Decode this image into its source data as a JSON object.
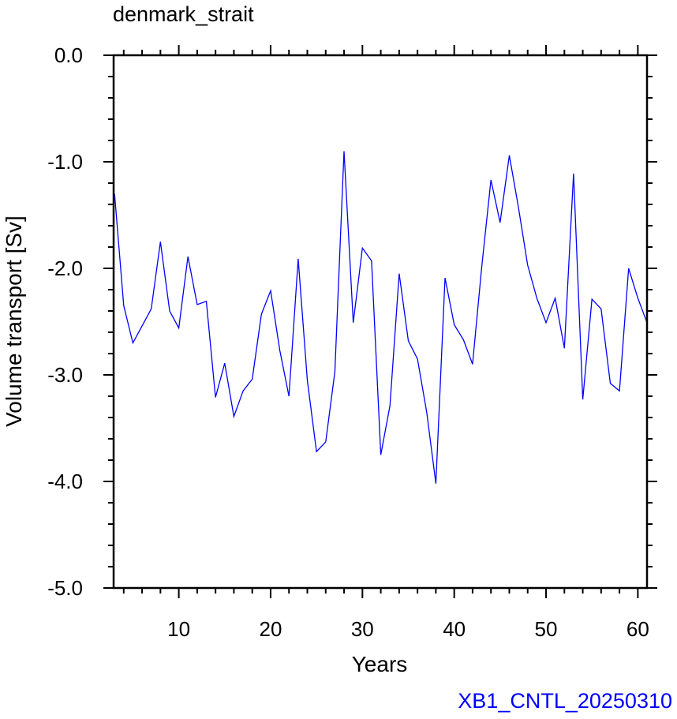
{
  "chart_data": {
    "type": "line",
    "title": "denmark_strait",
    "xlabel": "Years",
    "ylabel": "Volume transport [Sv]",
    "xlim": [
      2.9,
      61
    ],
    "ylim": [
      -5.0,
      0.0
    ],
    "xticks": [
      10,
      20,
      30,
      40,
      50,
      60
    ],
    "xtick_labels": [
      "10",
      "20",
      "30",
      "40",
      "50",
      "60"
    ],
    "yticks": [
      0.0,
      -1.0,
      -2.0,
      -3.0,
      -4.0,
      -5.0
    ],
    "ytick_labels": [
      "0.0",
      "-1.0",
      "-2.0",
      "-3.0",
      "-4.0",
      "-5.0"
    ],
    "grid": false,
    "line_color": "#0000ff",
    "series": [
      {
        "x": [
          3,
          4,
          5,
          6,
          7,
          8,
          9,
          10,
          11,
          12,
          13,
          14,
          15,
          16,
          17,
          18,
          19,
          20,
          21,
          22,
          23,
          24,
          25,
          26,
          27,
          28,
          29,
          30,
          31,
          32,
          33,
          34,
          35,
          36,
          37,
          38,
          39,
          40,
          41,
          42,
          43,
          44,
          45,
          46,
          47,
          48,
          49,
          50,
          51,
          52,
          53,
          54,
          55,
          56,
          57,
          58,
          59,
          60,
          61
        ],
        "values": [
          -1.3,
          -2.35,
          -2.7,
          -2.54,
          -2.38,
          -1.75,
          -2.4,
          -2.56,
          -1.89,
          -2.34,
          -2.31,
          -3.21,
          -2.89,
          -3.39,
          -3.15,
          -3.04,
          -2.43,
          -2.21,
          -2.77,
          -3.2,
          -1.91,
          -3.05,
          -3.72,
          -3.63,
          -2.97,
          -0.9,
          -2.51,
          -1.81,
          -1.93,
          -3.75,
          -3.29,
          -2.05,
          -2.68,
          -2.85,
          -3.35,
          -4.02,
          -2.09,
          -2.53,
          -2.67,
          -2.9,
          -1.98,
          -1.17,
          -1.57,
          -0.94,
          -1.43,
          -1.97,
          -2.28,
          -2.51,
          -2.28,
          -2.75,
          -1.11,
          -3.23,
          -2.29,
          -2.38,
          -3.08,
          -3.15,
          -2.0,
          -2.28,
          -2.51
        ]
      }
    ]
  },
  "footer": {
    "text": "XB1_CNTL_20250310",
    "color": "#0000ff"
  }
}
